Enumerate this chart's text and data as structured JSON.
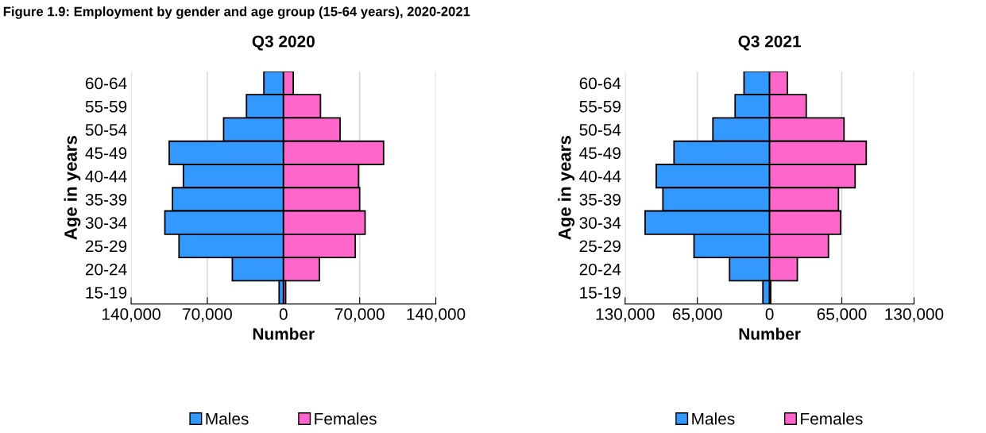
{
  "chart_data": [
    {
      "type": "bar",
      "orientation": "horizontal",
      "stacked": true,
      "title": "Q3 2020",
      "xlabel": "Number",
      "ylabel": "Age in years",
      "annotations": [
        "Figure 1.9: Employment by gender and age group (15-64 years), 2020-2021"
      ],
      "categories": [
        "60-64",
        "55-59",
        "50-54",
        "45-49",
        "40-44",
        "35-39",
        "30-34",
        "25-29",
        "20-24",
        "15-19"
      ],
      "series": [
        {
          "name": "Males",
          "color": "#3399ff",
          "values": [
            -18000,
            -34000,
            -55000,
            -105000,
            -92000,
            -102000,
            -109000,
            -96000,
            -47000,
            -4000
          ]
        },
        {
          "name": "Females",
          "color": "#ff66cc",
          "values": [
            9000,
            34000,
            52000,
            92000,
            69000,
            70000,
            75000,
            66000,
            33000,
            2000
          ]
        }
      ],
      "xlim": [
        -140000,
        140000
      ],
      "xticks": [
        {
          "value": -140000,
          "label": "140,000"
        },
        {
          "value": -70000,
          "label": "70,000"
        },
        0,
        {
          "value": 70000,
          "label": "70,000"
        },
        {
          "value": 140000,
          "label": "140,000"
        }
      ],
      "grid": "x",
      "legend": "bottom"
    },
    {
      "type": "bar",
      "orientation": "horizontal",
      "stacked": true,
      "title": "Q3 2021",
      "xlabel": "Number",
      "ylabel": "Age in years",
      "categories": [
        "60-64",
        "55-59",
        "50-54",
        "45-49",
        "40-44",
        "35-39",
        "30-34",
        "25-29",
        "20-24",
        "15-19"
      ],
      "series": [
        {
          "name": "Males",
          "color": "#3399ff",
          "values": [
            -23000,
            -31000,
            -51000,
            -86000,
            -102000,
            -96000,
            -112000,
            -68000,
            -36000,
            -6000
          ]
        },
        {
          "name": "Females",
          "color": "#ff66cc",
          "values": [
            16000,
            33000,
            67000,
            87000,
            77000,
            62000,
            64000,
            53000,
            25000,
            1000
          ]
        }
      ],
      "xlim": [
        -130000,
        130000
      ],
      "xticks": [
        {
          "value": -130000,
          "label": "130,000"
        },
        {
          "value": -65000,
          "label": "65,000"
        },
        0,
        {
          "value": 65000,
          "label": "65,000"
        },
        {
          "value": 130000,
          "label": "130,000"
        }
      ],
      "grid": "x",
      "legend": "bottom"
    }
  ]
}
